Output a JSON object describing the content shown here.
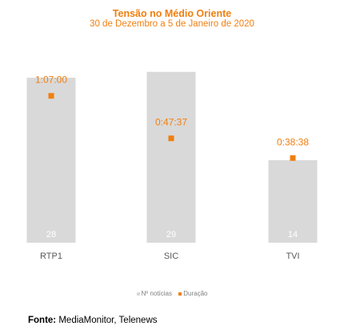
{
  "chart_data": {
    "type": "bar",
    "title": "Tensão no Médio Oriente",
    "subtitle": "30 de Dezembro a 5 de Janeiro de 2020",
    "categories": [
      "RTP1",
      "SIC",
      "TVI"
    ],
    "series": [
      {
        "name": "Nº notícias",
        "values": [
          28,
          29,
          14
        ],
        "kind": "bar",
        "color": "#D9D9D9"
      },
      {
        "name": "Duração",
        "values": [
          "1:07:00",
          "0:47:37",
          "0:38:38"
        ],
        "seconds": [
          4020,
          2857,
          2318
        ],
        "kind": "marker",
        "color": "#F07F0F"
      }
    ],
    "bar_ylim": [
      0,
      31
    ],
    "duration_ylim_seconds": [
      0,
      5000
    ],
    "legend_position": "bottom",
    "grid": false
  },
  "legend": {
    "bars": "Nº notícias",
    "markers": "Duração"
  },
  "source": {
    "label": "Fonte:",
    "text": "MediaMonitor, Telenews"
  }
}
